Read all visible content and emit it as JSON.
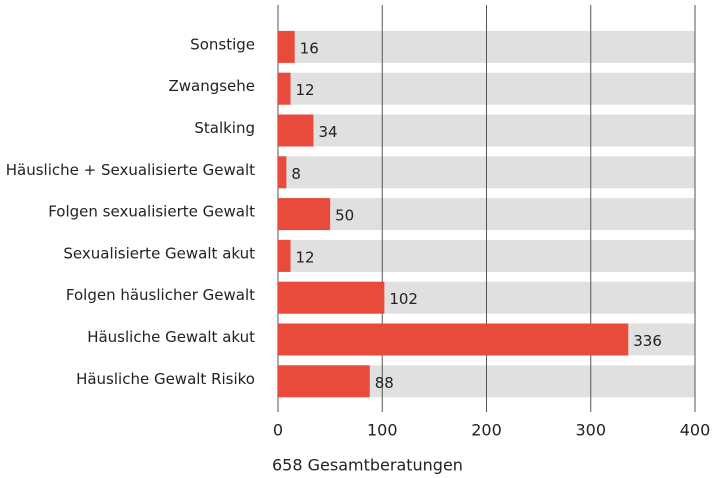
{
  "chart_data": {
    "type": "bar",
    "orientation": "horizontal",
    "categories": [
      "Sonstige",
      "Zwangsehe",
      "Stalking",
      "Häusliche + Sexualisierte Gewalt",
      "Folgen sexualisierte Gewalt",
      "Sexualisierte Gewalt akut",
      "Folgen häuslicher Gewalt",
      "Häusliche Gewalt akut",
      "Häusliche Gewalt Risiko"
    ],
    "values": [
      16,
      12,
      34,
      8,
      50,
      12,
      102,
      336,
      88
    ],
    "color": "#e84a3c",
    "track_color": "#e0e0e0",
    "xlim": [
      0,
      400
    ],
    "xticks": [
      0,
      100,
      200,
      300,
      400
    ],
    "grid": true,
    "xlabel": "658 Gesamtberatungen"
  }
}
